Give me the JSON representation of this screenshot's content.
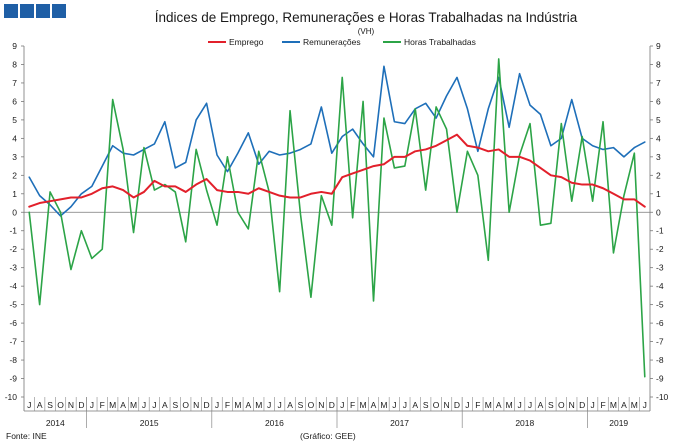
{
  "chart_data": {
    "type": "line",
    "title": "Índices de Emprego,  Remunerações e Horas Trabalhadas na Indústria",
    "subtitle": "(VH)",
    "ylim": [
      -10,
      9
    ],
    "yticks": [
      "-10",
      "-9",
      "-8",
      "-7",
      "-6",
      "-5",
      "-4",
      "-3",
      "-2",
      "-1",
      "0",
      "1",
      "2",
      "3",
      "4",
      "5",
      "6",
      "7",
      "8",
      "9"
    ],
    "grid": false,
    "legend_position": "top-center",
    "month_labels": [
      "J",
      "A",
      "S",
      "O",
      "N",
      "D",
      "J",
      "F",
      "M",
      "A",
      "M",
      "J",
      "J",
      "A",
      "S",
      "O",
      "N",
      "D",
      "J",
      "F",
      "M",
      "A",
      "M",
      "J",
      "J",
      "A",
      "S",
      "O",
      "N",
      "D",
      "J",
      "F",
      "M",
      "A",
      "M",
      "J",
      "J",
      "A",
      "S",
      "O",
      "N",
      "D",
      "J",
      "F",
      "M",
      "A",
      "M",
      "J",
      "J",
      "A",
      "S",
      "O",
      "N",
      "D",
      "J",
      "F",
      "M",
      "A",
      "M",
      "J"
    ],
    "year_labels": [
      {
        "label": "2014",
        "start": 0,
        "end": 5
      },
      {
        "label": "2015",
        "start": 6,
        "end": 17
      },
      {
        "label": "2016",
        "start": 18,
        "end": 29
      },
      {
        "label": "2017",
        "start": 30,
        "end": 41
      },
      {
        "label": "2018",
        "start": 42,
        "end": 53
      },
      {
        "label": "2019",
        "start": 54,
        "end": 59
      }
    ],
    "series": [
      {
        "name": "Emprego",
        "color": "#e2202b",
        "values": [
          0.3,
          0.5,
          0.6,
          0.7,
          0.8,
          0.8,
          1.0,
          1.3,
          1.4,
          1.2,
          0.8,
          1.1,
          1.7,
          1.4,
          1.4,
          1.1,
          1.5,
          1.8,
          1.2,
          1.1,
          1.1,
          1.0,
          1.3,
          1.1,
          0.9,
          0.8,
          0.8,
          1.0,
          1.1,
          1.0,
          1.9,
          2.1,
          2.3,
          2.5,
          2.6,
          3.0,
          3.0,
          3.3,
          3.4,
          3.6,
          3.9,
          4.2,
          3.6,
          3.5,
          3.3,
          3.4,
          3.0,
          3.0,
          2.8,
          2.4,
          2.0,
          1.9,
          1.6,
          1.5,
          1.5,
          1.3,
          1.0,
          0.7,
          0.7,
          0.3
        ]
      },
      {
        "name": "Remunerações",
        "color": "#1e6fb9",
        "values": [
          1.9,
          0.9,
          0.4,
          -0.2,
          0.3,
          1.0,
          1.4,
          2.5,
          3.6,
          3.2,
          3.1,
          3.4,
          3.7,
          4.9,
          2.4,
          2.7,
          5.0,
          5.9,
          3.1,
          2.2,
          3.2,
          4.3,
          2.6,
          3.3,
          3.1,
          3.2,
          3.4,
          3.7,
          5.7,
          3.2,
          4.1,
          4.5,
          3.7,
          3.0,
          7.9,
          4.9,
          4.8,
          5.6,
          5.9,
          5.1,
          6.3,
          7.3,
          5.6,
          3.3,
          5.6,
          7.3,
          4.6,
          7.5,
          5.8,
          5.3,
          3.6,
          4.0,
          6.1,
          4.0,
          3.6,
          3.4,
          3.5,
          3.0,
          3.5,
          3.8
        ]
      },
      {
        "name": "Horas Trabalhadas",
        "color": "#2ca447",
        "values": [
          0.0,
          -5.0,
          1.1,
          0.0,
          -3.1,
          -1.0,
          -2.5,
          -2.0,
          6.1,
          3.4,
          -1.1,
          3.5,
          1.2,
          1.5,
          1.1,
          -1.6,
          3.4,
          1.2,
          -0.7,
          3.0,
          0.0,
          -0.9,
          3.3,
          1.1,
          -4.3,
          5.5,
          -0.1,
          -4.6,
          0.9,
          -0.7,
          7.3,
          -0.3,
          6.0,
          -4.8,
          5.1,
          2.4,
          2.5,
          5.6,
          1.2,
          5.7,
          4.5,
          0.0,
          3.3,
          2.0,
          -2.6,
          8.3,
          0.0,
          3.1,
          4.8,
          -0.7,
          -0.6,
          4.8,
          0.6,
          4.1,
          0.6,
          4.9,
          -2.2,
          0.9,
          3.2,
          -8.9
        ]
      }
    ],
    "source": "Fonte: INE",
    "credit": "(Gráfico: GEE)"
  }
}
